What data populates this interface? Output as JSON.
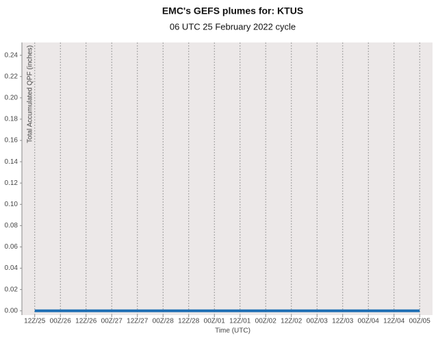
{
  "chart_data": {
    "type": "line",
    "title": "EMC's GEFS plumes for: KTUS",
    "subtitle": "06 UTC 25 February 2022 cycle",
    "y_label": "Total Accumulated QPF (inches)",
    "x_label": "Time (UTC)",
    "categories": [
      "12Z/25",
      "00Z/26",
      "12Z/26",
      "00Z/27",
      "12Z/27",
      "00Z/28",
      "12Z/28",
      "00Z/01",
      "12Z/01",
      "00Z/02",
      "12Z/02",
      "00Z/03",
      "12Z/03",
      "00Z/04",
      "12Z/04",
      "00Z/05"
    ],
    "series": [
      {
        "color": "#1f6fb4",
        "values": [
          0,
          0,
          0,
          0,
          0,
          0,
          0,
          0,
          0,
          0,
          0,
          0,
          0,
          0,
          0,
          0
        ]
      }
    ],
    "ylim": [
      -0.004,
      0.252
    ],
    "yticks": [
      {
        "value": 0,
        "label": "0.00"
      },
      {
        "value": 0.02,
        "label": "0.02"
      },
      {
        "value": 0.04,
        "label": "0.04"
      },
      {
        "value": 0.06,
        "label": "0.06"
      },
      {
        "value": 0.08,
        "label": "0.08"
      },
      {
        "value": 0.1,
        "label": "0.10"
      },
      {
        "value": 0.12,
        "label": "0.12"
      },
      {
        "value": 0.14,
        "label": "0.14"
      },
      {
        "value": 0.16,
        "label": "0.16"
      },
      {
        "value": 0.18,
        "label": "0.18"
      },
      {
        "value": 0.2,
        "label": "0.20"
      },
      {
        "value": 0.22,
        "label": "0.22"
      },
      {
        "value": 0.24,
        "label": "0.24"
      }
    ],
    "grid": true
  }
}
